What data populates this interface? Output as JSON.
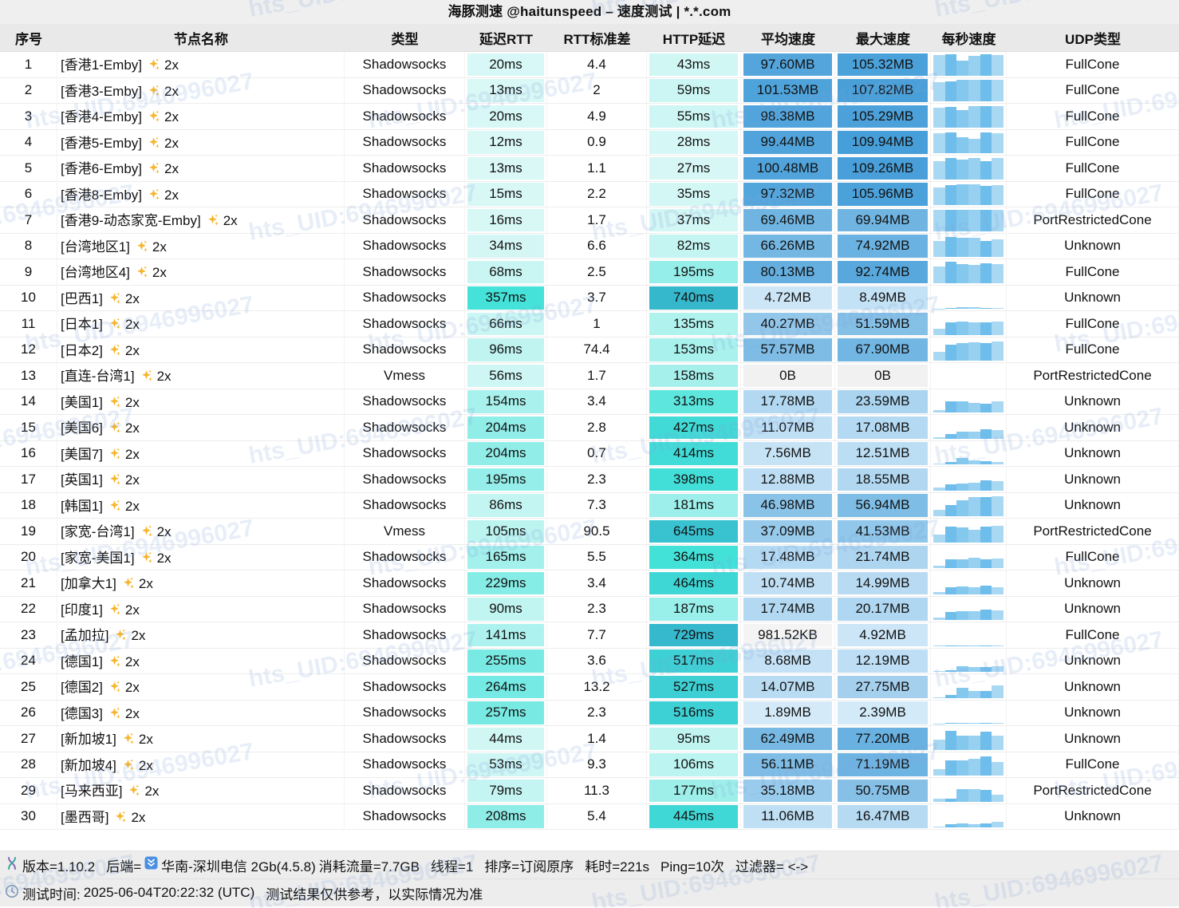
{
  "title": "海豚测速 @haitunspeed – 速度测试 | *.*.com",
  "watermark": {
    "text": "hts_UID:6946996027",
    "color": "rgba(128,163,216,0.18)"
  },
  "columns": [
    "序号",
    "节点名称",
    "类型",
    "延迟RTT",
    "RTT标准差",
    "HTTP延迟",
    "平均速度",
    "最大速度",
    "每秒速度",
    "UDP类型"
  ],
  "colors": {
    "latency_scale": {
      "stops": [
        {
          "v": 10,
          "c": "#d9f8f6"
        },
        {
          "v": 360,
          "c": "#43e2d9"
        },
        {
          "v": 750,
          "c": "#35b6cc"
        }
      ],
      "gamma_first": 1.25
    },
    "speed_scale": {
      "low": "#ddeffb",
      "high": "#479fd9",
      "max": 110,
      "gamma": 0.7,
      "zero": "#f1f1f1",
      "sub1": "#f4f4f4"
    },
    "bar_palette": [
      "#a9d8f3",
      "#6fbdea",
      "#85c8ee",
      "#97d0f0",
      "#6fbdea",
      "#a9d8f3"
    ],
    "sparkle": "#f7b52c"
  },
  "rows": [
    {
      "no": "1",
      "name": "[香港1-Emby]",
      "mult": "2x",
      "type": "Shadowsocks",
      "rtt": "20ms",
      "rtt_v": 20,
      "sd": "4.4",
      "http": "43ms",
      "http_v": 43,
      "avg": "97.60MB",
      "avg_v": 97.6,
      "max": "105.32MB",
      "max_v": 105.32,
      "udp": "FullCone",
      "bars": [
        0.93,
        0.95,
        0.68,
        0.88,
        0.95,
        0.93
      ]
    },
    {
      "no": "2",
      "name": "[香港3-Emby]",
      "mult": "2x",
      "type": "Shadowsocks",
      "rtt": "13ms",
      "rtt_v": 13,
      "sd": "2",
      "http": "59ms",
      "http_v": 59,
      "avg": "101.53MB",
      "avg_v": 101.53,
      "max": "107.82MB",
      "max_v": 107.82,
      "udp": "FullCone",
      "bars": [
        0.85,
        0.9,
        0.97,
        0.97,
        0.97,
        0.97
      ]
    },
    {
      "no": "3",
      "name": "[香港4-Emby]",
      "mult": "2x",
      "type": "Shadowsocks",
      "rtt": "20ms",
      "rtt_v": 20,
      "sd": "4.9",
      "http": "55ms",
      "http_v": 55,
      "avg": "98.38MB",
      "avg_v": 98.38,
      "max": "105.29MB",
      "max_v": 105.29,
      "udp": "FullCone",
      "bars": [
        0.88,
        0.92,
        0.78,
        0.97,
        0.97,
        0.95
      ]
    },
    {
      "no": "4",
      "name": "[香港5-Emby]",
      "mult": "2x",
      "type": "Shadowsocks",
      "rtt": "12ms",
      "rtt_v": 12,
      "sd": "0.9",
      "http": "28ms",
      "http_v": 28,
      "avg": "99.44MB",
      "avg_v": 99.44,
      "max": "109.94MB",
      "max_v": 109.94,
      "udp": "FullCone",
      "bars": [
        0.9,
        0.95,
        0.72,
        0.65,
        0.95,
        0.92
      ]
    },
    {
      "no": "5",
      "name": "[香港6-Emby]",
      "mult": "2x",
      "type": "Shadowsocks",
      "rtt": "13ms",
      "rtt_v": 13,
      "sd": "1.1",
      "http": "27ms",
      "http_v": 27,
      "avg": "100.48MB",
      "avg_v": 100.48,
      "max": "109.26MB",
      "max_v": 109.26,
      "udp": "FullCone",
      "bars": [
        0.82,
        0.95,
        0.88,
        0.95,
        0.8,
        0.95
      ]
    },
    {
      "no": "6",
      "name": "[香港8-Emby]",
      "mult": "2x",
      "type": "Shadowsocks",
      "rtt": "15ms",
      "rtt_v": 15,
      "sd": "2.2",
      "http": "35ms",
      "http_v": 35,
      "avg": "97.32MB",
      "avg_v": 97.32,
      "max": "105.96MB",
      "max_v": 105.96,
      "udp": "FullCone",
      "bars": [
        0.78,
        0.92,
        0.95,
        0.95,
        0.88,
        0.92
      ]
    },
    {
      "no": "7",
      "name": "[香港9-动态家宽-Emby]",
      "mult": "2x",
      "type": "Shadowsocks",
      "rtt": "16ms",
      "rtt_v": 16,
      "sd": "1.7",
      "http": "37ms",
      "http_v": 37,
      "avg": "69.46MB",
      "avg_v": 69.46,
      "max": "69.94MB",
      "max_v": 69.94,
      "udp": "PortRestrictedCone",
      "bars": [
        0.97,
        0.97,
        0.97,
        0.97,
        0.97,
        0.97
      ]
    },
    {
      "no": "8",
      "name": "[台湾地区1]",
      "mult": "2x",
      "type": "Shadowsocks",
      "rtt": "34ms",
      "rtt_v": 34,
      "sd": "6.6",
      "http": "82ms",
      "http_v": 82,
      "avg": "66.26MB",
      "avg_v": 66.26,
      "max": "74.92MB",
      "max_v": 74.92,
      "udp": "Unknown",
      "bars": [
        0.72,
        0.92,
        0.88,
        0.88,
        0.72,
        0.78
      ]
    },
    {
      "no": "9",
      "name": "[台湾地区4]",
      "mult": "2x",
      "type": "Shadowsocks",
      "rtt": "68ms",
      "rtt_v": 68,
      "sd": "2.5",
      "http": "195ms",
      "http_v": 195,
      "avg": "80.13MB",
      "avg_v": 80.13,
      "max": "92.74MB",
      "max_v": 92.74,
      "udp": "FullCone",
      "bars": [
        0.75,
        0.95,
        0.85,
        0.8,
        0.9,
        0.85
      ]
    },
    {
      "no": "10",
      "name": "[巴西1]",
      "mult": "2x",
      "type": "Shadowsocks",
      "rtt": "357ms",
      "rtt_v": 357,
      "sd": "3.7",
      "http": "740ms",
      "http_v": 740,
      "avg": "4.72MB",
      "avg_v": 4.72,
      "max": "8.49MB",
      "max_v": 8.49,
      "udp": "Unknown",
      "bars": [
        0.02,
        0.03,
        0.07,
        0.09,
        0.06,
        0.05
      ]
    },
    {
      "no": "11",
      "name": "[日本1]",
      "mult": "2x",
      "type": "Shadowsocks",
      "rtt": "66ms",
      "rtt_v": 66,
      "sd": "1",
      "http": "135ms",
      "http_v": 135,
      "avg": "40.27MB",
      "avg_v": 40.27,
      "max": "51.59MB",
      "max_v": 51.59,
      "udp": "FullCone",
      "bars": [
        0.28,
        0.55,
        0.6,
        0.58,
        0.55,
        0.6
      ]
    },
    {
      "no": "12",
      "name": "[日本2]",
      "mult": "2x",
      "type": "Shadowsocks",
      "rtt": "96ms",
      "rtt_v": 96,
      "sd": "74.4",
      "http": "153ms",
      "http_v": 153,
      "avg": "57.57MB",
      "avg_v": 57.57,
      "max": "67.90MB",
      "max_v": 67.9,
      "udp": "FullCone",
      "bars": [
        0.4,
        0.72,
        0.78,
        0.82,
        0.78,
        0.85
      ]
    },
    {
      "no": "13",
      "name": "[直连-台湾1]",
      "mult": "2x",
      "type": "Vmess",
      "rtt": "56ms",
      "rtt_v": 56,
      "sd": "1.7",
      "http": "158ms",
      "http_v": 158,
      "avg": "0B",
      "avg_v": 0,
      "max": "0B",
      "max_v": 0,
      "udp": "PortRestrictedCone",
      "bars": [
        0,
        0,
        0,
        0,
        0,
        0
      ]
    },
    {
      "no": "14",
      "name": "[美国1]",
      "mult": "2x",
      "type": "Shadowsocks",
      "rtt": "154ms",
      "rtt_v": 154,
      "sd": "3.4",
      "http": "313ms",
      "http_v": 313,
      "avg": "17.78MB",
      "avg_v": 17.78,
      "max": "23.59MB",
      "max_v": 23.59,
      "udp": "Unknown",
      "bars": [
        0.12,
        0.5,
        0.5,
        0.45,
        0.42,
        0.5
      ]
    },
    {
      "no": "15",
      "name": "[美国6]",
      "mult": "2x",
      "type": "Shadowsocks",
      "rtt": "204ms",
      "rtt_v": 204,
      "sd": "2.8",
      "http": "427ms",
      "http_v": 427,
      "avg": "11.07MB",
      "avg_v": 11.07,
      "max": "17.08MB",
      "max_v": 17.08,
      "udp": "Unknown",
      "bars": [
        0.06,
        0.2,
        0.3,
        0.32,
        0.42,
        0.38
      ]
    },
    {
      "no": "16",
      "name": "[美国7]",
      "mult": "2x",
      "type": "Shadowsocks",
      "rtt": "204ms",
      "rtt_v": 204,
      "sd": "0.7",
      "http": "414ms",
      "http_v": 414,
      "avg": "7.56MB",
      "avg_v": 7.56,
      "max": "12.51MB",
      "max_v": 12.51,
      "udp": "Unknown",
      "bars": [
        0.06,
        0.12,
        0.28,
        0.18,
        0.15,
        0.12
      ]
    },
    {
      "no": "17",
      "name": "[英国1]",
      "mult": "2x",
      "type": "Shadowsocks",
      "rtt": "195ms",
      "rtt_v": 195,
      "sd": "2.3",
      "http": "398ms",
      "http_v": 398,
      "avg": "12.88MB",
      "avg_v": 12.88,
      "max": "18.55MB",
      "max_v": 18.55,
      "udp": "Unknown",
      "bars": [
        0.15,
        0.28,
        0.33,
        0.35,
        0.45,
        0.42
      ]
    },
    {
      "no": "18",
      "name": "[韩国1]",
      "mult": "2x",
      "type": "Shadowsocks",
      "rtt": "86ms",
      "rtt_v": 86,
      "sd": "7.3",
      "http": "181ms",
      "http_v": 181,
      "avg": "46.98MB",
      "avg_v": 46.98,
      "max": "56.94MB",
      "max_v": 56.94,
      "udp": "Unknown",
      "bars": [
        0.28,
        0.52,
        0.72,
        0.85,
        0.88,
        0.9
      ]
    },
    {
      "no": "19",
      "name": "[家宽-台湾1]",
      "mult": "2x",
      "type": "Vmess",
      "rtt": "105ms",
      "rtt_v": 105,
      "sd": "90.5",
      "http": "645ms",
      "http_v": 645,
      "avg": "37.09MB",
      "avg_v": 37.09,
      "max": "41.53MB",
      "max_v": 41.53,
      "udp": "PortRestrictedCone",
      "bars": [
        0.35,
        0.72,
        0.68,
        0.55,
        0.72,
        0.75
      ]
    },
    {
      "no": "20",
      "name": "[家宽-美国1]",
      "mult": "2x",
      "type": "Shadowsocks",
      "rtt": "165ms",
      "rtt_v": 165,
      "sd": "5.5",
      "http": "364ms",
      "http_v": 364,
      "avg": "17.48MB",
      "avg_v": 17.48,
      "max": "21.74MB",
      "max_v": 21.74,
      "udp": "FullCone",
      "bars": [
        0.12,
        0.42,
        0.42,
        0.48,
        0.42,
        0.45
      ]
    },
    {
      "no": "21",
      "name": "[加拿大1]",
      "mult": "2x",
      "type": "Shadowsocks",
      "rtt": "229ms",
      "rtt_v": 229,
      "sd": "3.4",
      "http": "464ms",
      "http_v": 464,
      "avg": "10.74MB",
      "avg_v": 10.74,
      "max": "14.99MB",
      "max_v": 14.99,
      "udp": "Unknown",
      "bars": [
        0.1,
        0.3,
        0.35,
        0.3,
        0.38,
        0.32
      ]
    },
    {
      "no": "22",
      "name": "[印度1]",
      "mult": "2x",
      "type": "Shadowsocks",
      "rtt": "90ms",
      "rtt_v": 90,
      "sd": "2.3",
      "http": "187ms",
      "http_v": 187,
      "avg": "17.74MB",
      "avg_v": 17.74,
      "max": "20.17MB",
      "max_v": 20.17,
      "udp": "Unknown",
      "bars": [
        0.12,
        0.38,
        0.42,
        0.42,
        0.48,
        0.45
      ]
    },
    {
      "no": "23",
      "name": "[孟加拉]",
      "mult": "2x",
      "type": "Shadowsocks",
      "rtt": "141ms",
      "rtt_v": 141,
      "sd": "7.7",
      "http": "729ms",
      "http_v": 729,
      "avg": "981.52KB",
      "avg_v": 0.96,
      "max": "4.92MB",
      "max_v": 4.92,
      "udp": "FullCone",
      "bars": [
        0.02,
        0.02,
        0.03,
        0.02,
        0.03,
        0.04
      ]
    },
    {
      "no": "24",
      "name": "[德国1]",
      "mult": "2x",
      "type": "Shadowsocks",
      "rtt": "255ms",
      "rtt_v": 255,
      "sd": "3.6",
      "http": "517ms",
      "http_v": 517,
      "avg": "8.68MB",
      "avg_v": 8.68,
      "max": "12.19MB",
      "max_v": 12.19,
      "udp": "Unknown",
      "bars": [
        0.03,
        0.08,
        0.26,
        0.24,
        0.24,
        0.26
      ]
    },
    {
      "no": "25",
      "name": "[德国2]",
      "mult": "2x",
      "type": "Shadowsocks",
      "rtt": "264ms",
      "rtt_v": 264,
      "sd": "13.2",
      "http": "527ms",
      "http_v": 527,
      "avg": "14.07MB",
      "avg_v": 14.07,
      "max": "27.75MB",
      "max_v": 27.75,
      "udp": "Unknown",
      "bars": [
        0.04,
        0.12,
        0.45,
        0.32,
        0.3,
        0.55
      ]
    },
    {
      "no": "26",
      "name": "[德国3]",
      "mult": "2x",
      "type": "Shadowsocks",
      "rtt": "257ms",
      "rtt_v": 257,
      "sd": "2.3",
      "http": "516ms",
      "http_v": 516,
      "avg": "1.89MB",
      "avg_v": 1.89,
      "max": "2.39MB",
      "max_v": 2.39,
      "udp": "Unknown",
      "bars": [
        0.02,
        0.04,
        0.05,
        0.04,
        0.05,
        0.05
      ]
    },
    {
      "no": "27",
      "name": "[新加坡1]",
      "mult": "2x",
      "type": "Shadowsocks",
      "rtt": "44ms",
      "rtt_v": 44,
      "sd": "1.4",
      "http": "95ms",
      "http_v": 95,
      "avg": "62.49MB",
      "avg_v": 62.49,
      "max": "77.20MB",
      "max_v": 77.2,
      "udp": "Unknown",
      "bars": [
        0.45,
        0.85,
        0.62,
        0.65,
        0.82,
        0.62
      ]
    },
    {
      "no": "28",
      "name": "[新加坡4]",
      "mult": "2x",
      "type": "Shadowsocks",
      "rtt": "53ms",
      "rtt_v": 53,
      "sd": "9.3",
      "http": "106ms",
      "http_v": 106,
      "avg": "56.11MB",
      "avg_v": 56.11,
      "max": "71.19MB",
      "max_v": 71.19,
      "udp": "FullCone",
      "bars": [
        0.3,
        0.68,
        0.7,
        0.75,
        0.88,
        0.6
      ]
    },
    {
      "no": "29",
      "name": "[马来西亚]",
      "mult": "2x",
      "type": "Shadowsocks",
      "rtt": "79ms",
      "rtt_v": 79,
      "sd": "11.3",
      "http": "177ms",
      "http_v": 177,
      "avg": "35.18MB",
      "avg_v": 35.18,
      "max": "50.75MB",
      "max_v": 50.75,
      "udp": "PortRestrictedCone",
      "bars": [
        0.15,
        0.12,
        0.55,
        0.55,
        0.52,
        0.32
      ]
    },
    {
      "no": "30",
      "name": "[墨西哥]",
      "mult": "2x",
      "type": "Shadowsocks",
      "rtt": "208ms",
      "rtt_v": 208,
      "sd": "5.4",
      "http": "445ms",
      "http_v": 445,
      "avg": "11.06MB",
      "avg_v": 11.06,
      "max": "16.47MB",
      "max_v": 16.47,
      "udp": "Unknown",
      "bars": [
        0.06,
        0.16,
        0.2,
        0.16,
        0.2,
        0.26
      ]
    }
  ],
  "footer": {
    "line1": {
      "version": "版本=1.10.2",
      "backend_label": "后端=",
      "backend_value": "华南-深圳电信 2Gb(4.5.8)",
      "traffic": "消耗流量=7.7GB",
      "threads": "线程=1",
      "sort": "排序=订阅原序",
      "elapsed": "耗时=221s",
      "ping": "Ping=10次",
      "filter": "过滤器= <->"
    },
    "line2": {
      "time_label": "测试时间:",
      "time_value": "2025-06-04T20:22:32 (UTC)",
      "disclaimer": "测试结果仅供参考，以实际情况为准"
    }
  }
}
